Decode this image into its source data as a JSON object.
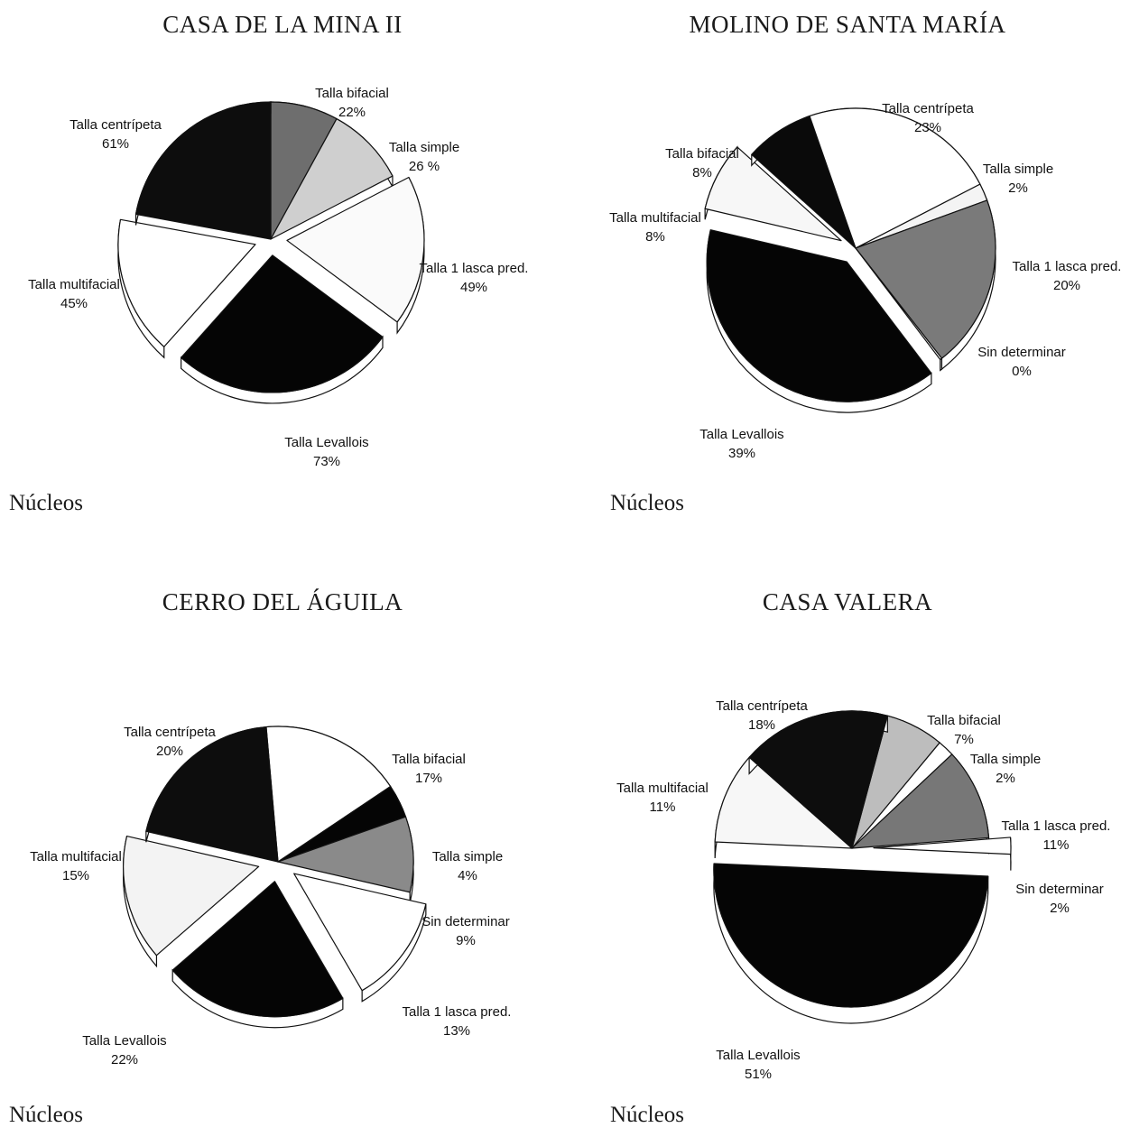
{
  "chart_data": [
    {
      "type": "pie",
      "title": "CASA DE LA MINA II",
      "footer": "Núcleos",
      "slices": [
        {
          "label": "Talla bifacial",
          "pct_label": "22%",
          "value": 22,
          "fill": "#6e6e6e"
        },
        {
          "label": "Talla simple",
          "pct_label": "26 %",
          "value": 26,
          "fill": "#cfcfcf"
        },
        {
          "label": "Talla 1 lasca pred.",
          "pct_label": "49%",
          "value": 49,
          "fill": "#fafafa",
          "exploded": true
        },
        {
          "label": "Talla Levallois",
          "pct_label": "73%",
          "value": 73,
          "fill": "#050505",
          "exploded": true
        },
        {
          "label": "Talla multifacial",
          "pct_label": "45%",
          "value": 45,
          "fill": "#ffffff",
          "exploded": true
        },
        {
          "label": "Talla centrípeta",
          "pct_label": "61%",
          "value": 61,
          "fill": "#0d0d0d"
        }
      ]
    },
    {
      "type": "pie",
      "title": "MOLINO DE SANTA MARÍA",
      "footer": "Núcleos",
      "slices": [
        {
          "label": "Talla centrípeta",
          "pct_label": "23%",
          "value": 23,
          "fill": "#ffffff"
        },
        {
          "label": "Talla simple",
          "pct_label": "2%",
          "value": 2,
          "fill": "#f4f4f4"
        },
        {
          "label": "Talla 1 lasca pred.",
          "pct_label": "20%",
          "value": 20,
          "fill": "#7a7a7a"
        },
        {
          "label": "Sin determinar",
          "pct_label": "0%",
          "value": 0,
          "fill": "#ffffff"
        },
        {
          "label": "Talla Levallois",
          "pct_label": "39%",
          "value": 39,
          "fill": "#050505",
          "exploded": true
        },
        {
          "label": "Talla multifacial",
          "pct_label": "8%",
          "value": 8,
          "fill": "#f7f7f7",
          "exploded": true
        },
        {
          "label": "Talla bifacial",
          "pct_label": "8%",
          "value": 8,
          "fill": "#0a0a0a"
        }
      ]
    },
    {
      "type": "pie",
      "title": "CERRO DEL ÁGUILA",
      "footer": "Núcleos",
      "slices": [
        {
          "label": "Talla bifacial",
          "pct_label": "17%",
          "value": 17,
          "fill": "#ffffff"
        },
        {
          "label": "Talla simple",
          "pct_label": "4%",
          "value": 4,
          "fill": "#050505"
        },
        {
          "label": "Sin determinar",
          "pct_label": "9%",
          "value": 9,
          "fill": "#8a8a8a"
        },
        {
          "label": "Talla 1 lasca pred.",
          "pct_label": "13%",
          "value": 13,
          "fill": "#ffffff",
          "exploded": true
        },
        {
          "label": "Talla Levallois",
          "pct_label": "22%",
          "value": 22,
          "fill": "#050505",
          "exploded": true
        },
        {
          "label": "Talla multifacial",
          "pct_label": "15%",
          "value": 15,
          "fill": "#f3f3f3",
          "exploded": true
        },
        {
          "label": "Talla centrípeta",
          "pct_label": "20%",
          "value": 20,
          "fill": "#0d0d0d"
        }
      ]
    },
    {
      "type": "pie",
      "title": "CASA VALERA",
      "footer": "Núcleos",
      "slices": [
        {
          "label": "Talla bifacial",
          "pct_label": "7%",
          "value": 7,
          "fill": "#bdbdbd"
        },
        {
          "label": "Talla simple",
          "pct_label": "2%",
          "value": 2,
          "fill": "#ffffff"
        },
        {
          "label": "Talla 1 lasca pred.",
          "pct_label": "11%",
          "value": 11,
          "fill": "#777777"
        },
        {
          "label": "Sin determinar",
          "pct_label": "2%",
          "value": 2,
          "fill": "#ffffff",
          "exploded": true
        },
        {
          "label": "Talla Levallois",
          "pct_label": "51%",
          "value": 51,
          "fill": "#050505",
          "exploded": true
        },
        {
          "label": "Talla multifacial",
          "pct_label": "11%",
          "value": 11,
          "fill": "#f7f7f7"
        },
        {
          "label": "Talla centrípeta",
          "pct_label": "18%",
          "value": 18,
          "fill": "#0d0d0d"
        }
      ]
    }
  ]
}
